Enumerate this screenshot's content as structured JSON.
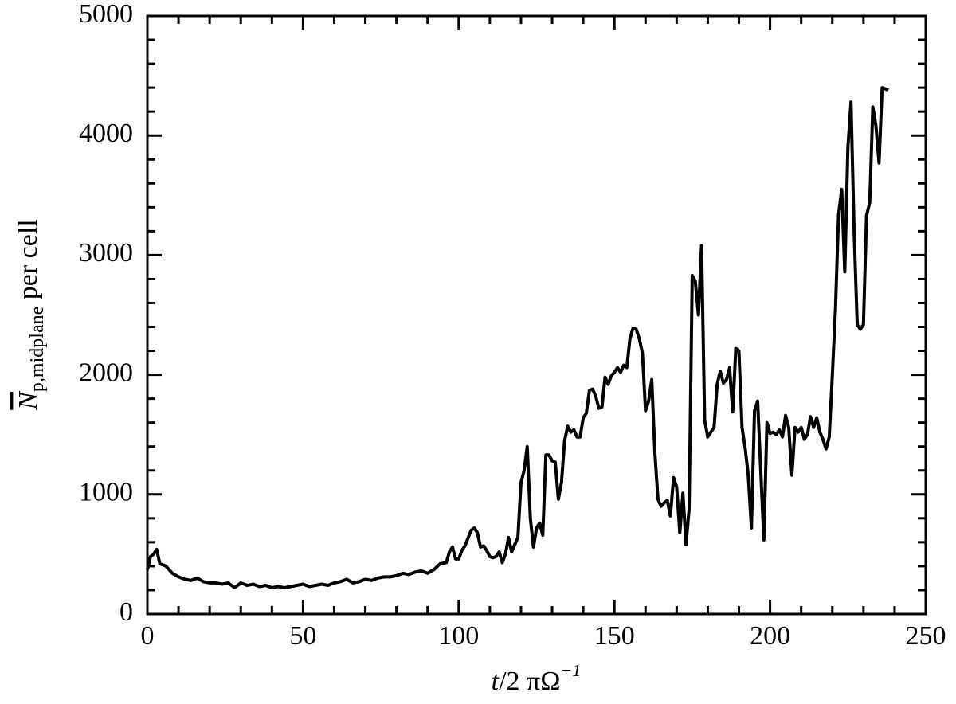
{
  "chart_data": {
    "type": "line",
    "xlabel": {
      "var": "t",
      "mid": "/2 πΩ",
      "sup": "−1"
    },
    "ylabel": {
      "symbol": "N",
      "subscript": "p,midplane",
      "suffix": " per cell"
    },
    "xlim": [
      0,
      250
    ],
    "ylim": [
      0,
      5000
    ],
    "xticks": [
      0,
      50,
      100,
      150,
      200,
      250
    ],
    "yticks": [
      0,
      1000,
      2000,
      3000,
      4000,
      5000
    ],
    "xminorticks": [
      10,
      20,
      30,
      40,
      60,
      70,
      80,
      90,
      110,
      120,
      130,
      140,
      160,
      170,
      180,
      190,
      210,
      220,
      230,
      240
    ],
    "yminorticks": [
      200,
      400,
      600,
      800,
      1200,
      1400,
      1600,
      1800,
      2200,
      2400,
      2600,
      2800,
      3200,
      3400,
      3600,
      3800,
      4200,
      4400,
      4600,
      4800
    ],
    "color": "#000000",
    "x": [
      0,
      1,
      2,
      3,
      4,
      6,
      8,
      10,
      12,
      14,
      16,
      18,
      20,
      22,
      24,
      26,
      28,
      30,
      32,
      34,
      36,
      38,
      40,
      42,
      44,
      46,
      48,
      50,
      52,
      54,
      56,
      58,
      60,
      62,
      64,
      66,
      68,
      70,
      72,
      74,
      76,
      78,
      80,
      82,
      84,
      86,
      88,
      90,
      92,
      94,
      96,
      97,
      98,
      99,
      100,
      101,
      102,
      104,
      105,
      106,
      107,
      108,
      109,
      110,
      111,
      112,
      113,
      114,
      115,
      116,
      117,
      118,
      119,
      120,
      121,
      122,
      123,
      124,
      125,
      126,
      127,
      128,
      129,
      130,
      131,
      132,
      133,
      134,
      135,
      136,
      137,
      138,
      139,
      140,
      141,
      142,
      143,
      144,
      145,
      146,
      147,
      148,
      149,
      150,
      151,
      152,
      153,
      154,
      155,
      156,
      157,
      158,
      159,
      160,
      161,
      162,
      163,
      164,
      165,
      166,
      167,
      168,
      169,
      170,
      171,
      172,
      173,
      174,
      175,
      176,
      177,
      178,
      179,
      180,
      181,
      182,
      183,
      184,
      185,
      186,
      187,
      188,
      189,
      190,
      191,
      192,
      193,
      194,
      195,
      196,
      197,
      198,
      199,
      200,
      201,
      202,
      203,
      204,
      205,
      206,
      207,
      208,
      209,
      210,
      211,
      212,
      213,
      214,
      215,
      216,
      217,
      218,
      219,
      220,
      221,
      222,
      223,
      224,
      225,
      226,
      227,
      228,
      229,
      230,
      231,
      232,
      233,
      234,
      235,
      236,
      237,
      238
    ],
    "values": [
      370,
      480,
      500,
      540,
      420,
      400,
      340,
      310,
      290,
      280,
      300,
      270,
      260,
      260,
      250,
      260,
      220,
      260,
      240,
      250,
      230,
      240,
      220,
      230,
      220,
      230,
      240,
      250,
      230,
      240,
      250,
      240,
      260,
      270,
      290,
      260,
      270,
      290,
      280,
      300,
      310,
      310,
      320,
      340,
      330,
      350,
      360,
      340,
      370,
      420,
      430,
      520,
      560,
      460,
      460,
      530,
      570,
      700,
      720,
      680,
      560,
      570,
      530,
      480,
      470,
      480,
      520,
      430,
      500,
      640,
      520,
      580,
      640,
      1100,
      1200,
      1400,
      800,
      560,
      720,
      760,
      660,
      1330,
      1330,
      1280,
      1270,
      960,
      1100,
      1450,
      1570,
      1520,
      1540,
      1480,
      1480,
      1640,
      1680,
      1870,
      1880,
      1820,
      1720,
      1730,
      1980,
      1920,
      1990,
      2020,
      2060,
      2020,
      2080,
      2060,
      2300,
      2390,
      2380,
      2300,
      2180,
      1700,
      1780,
      1960,
      1350,
      960,
      900,
      930,
      950,
      820,
      1140,
      1060,
      680,
      1010,
      580,
      880,
      2830,
      2780,
      2500,
      3080,
      1620,
      1480,
      1520,
      1560,
      1920,
      2030,
      1930,
      1960,
      2060,
      1690,
      2220,
      2200,
      1560,
      1390,
      1160,
      720,
      1700,
      1780,
      1200,
      620,
      1600,
      1510,
      1520,
      1500,
      1540,
      1480,
      1660,
      1560,
      1160,
      1560,
      1520,
      1560,
      1460,
      1500,
      1650,
      1560,
      1640,
      1520,
      1460,
      1380,
      1480,
      2000,
      2550,
      3340,
      3550,
      2860,
      3900,
      4280,
      3200,
      2420,
      2380,
      2420,
      3330,
      3440,
      4240,
      4080,
      3770,
      4400,
      4390,
      4380
    ]
  }
}
